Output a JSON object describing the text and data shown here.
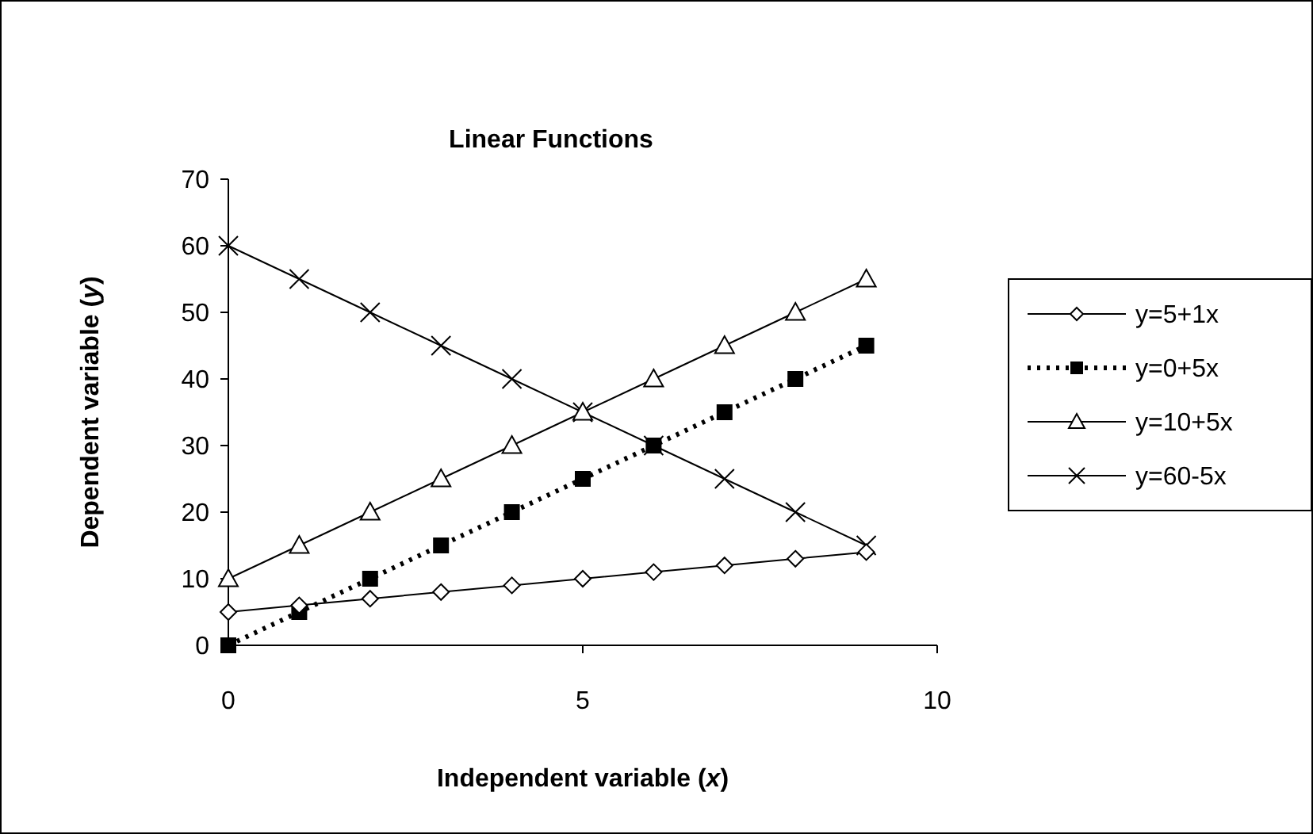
{
  "chart_data": {
    "type": "line",
    "title": "Linear Functions",
    "xlabel": "Independent variable (x)",
    "ylabel": "Dependent variable (y)",
    "x": [
      0,
      1,
      2,
      3,
      4,
      5,
      6,
      7,
      8,
      9
    ],
    "series": [
      {
        "name": "y=5+1x",
        "color": "#000000",
        "marker": "diamond",
        "line_style": "solid",
        "values": [
          5,
          6,
          7,
          8,
          9,
          10,
          11,
          12,
          13,
          14
        ]
      },
      {
        "name": "y=0+5x",
        "color": "#000000",
        "marker": "square",
        "line_style": "dotted",
        "values": [
          0,
          5,
          10,
          15,
          20,
          25,
          30,
          35,
          40,
          45
        ]
      },
      {
        "name": "y=10+5x",
        "color": "#000000",
        "marker": "triangle",
        "line_style": "solid",
        "values": [
          10,
          15,
          20,
          25,
          30,
          35,
          40,
          45,
          50,
          55
        ]
      },
      {
        "name": "y=60-5x",
        "color": "#000000",
        "marker": "cross",
        "line_style": "solid",
        "values": [
          60,
          55,
          50,
          45,
          40,
          35,
          30,
          25,
          20,
          15
        ]
      }
    ],
    "xlim": [
      0,
      10
    ],
    "xticks": [
      0,
      5,
      10
    ],
    "ylim": [
      0,
      70
    ],
    "yticks": [
      0,
      10,
      20,
      30,
      40,
      50,
      60,
      70
    ],
    "grid": false,
    "legend": "right"
  }
}
